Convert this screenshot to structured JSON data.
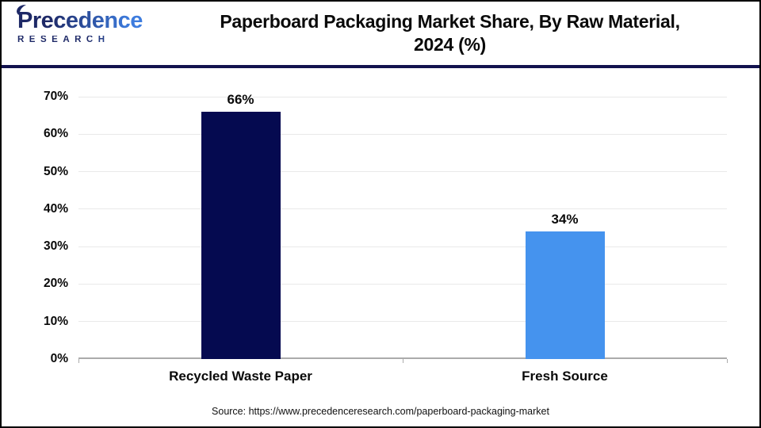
{
  "logo": {
    "name": "Precedence",
    "subtitle": "RESEARCH"
  },
  "title": {
    "line1": "Paperboard Packaging Market Share, By Raw Material,",
    "line2": "2024 (%)"
  },
  "source": "Source: https://www.precedenceresearch.com/paperboard-packaging-market",
  "chart_data": {
    "type": "bar",
    "title": "Paperboard Packaging Market Share, By Raw Material, 2024 (%)",
    "categories": [
      "Recycled Waste Paper",
      "Fresh Source"
    ],
    "values": [
      66,
      34
    ],
    "value_labels": [
      "66%",
      "34%"
    ],
    "bar_colors": [
      "#050A50",
      "#4593EE"
    ],
    "y_ticks": [
      0,
      10,
      20,
      30,
      40,
      50,
      60,
      70
    ],
    "y_tick_suffix": "%",
    "ylim": [
      0,
      70
    ],
    "xlabel": "",
    "ylabel": "",
    "grid": true,
    "legend": false
  },
  "theme": {
    "navy": "#050A50",
    "blue": "#4593EE",
    "separator": "#12124E",
    "grid_color": "#E9E9E9",
    "axis_color": "#ABABAB",
    "logo_navy": "#1E2967",
    "logo_blue": "#3D7CDE"
  }
}
